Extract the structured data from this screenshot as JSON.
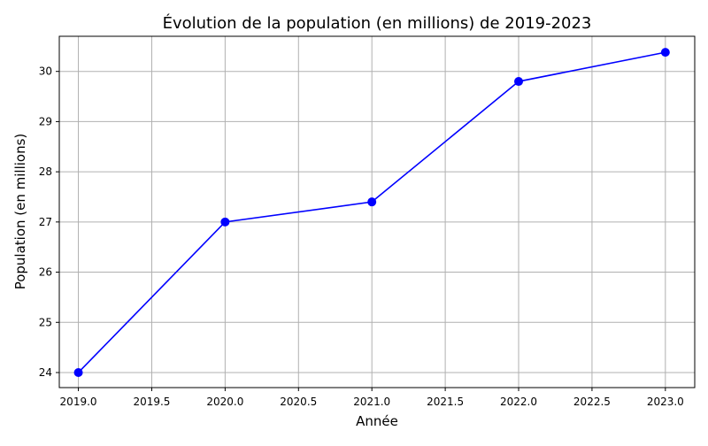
{
  "chart_data": {
    "type": "line",
    "title": "Évolution de la population (en millions) de 2019-2023",
    "xlabel": "Année",
    "ylabel": "Population (en millions)",
    "xlim": [
      2018.87,
      2023.2
    ],
    "ylim": [
      23.7,
      30.7
    ],
    "x_ticks": [
      2019.0,
      2019.5,
      2020.0,
      2020.5,
      2021.0,
      2021.5,
      2022.0,
      2022.5,
      2023.0
    ],
    "x_tick_labels": [
      "2019.0",
      "2019.5",
      "2020.0",
      "2020.5",
      "2021.0",
      "2021.5",
      "2022.0",
      "2022.5",
      "2023.0"
    ],
    "y_ticks": [
      24,
      25,
      26,
      27,
      28,
      29,
      30
    ],
    "y_tick_labels": [
      "24",
      "25",
      "26",
      "27",
      "28",
      "29",
      "30"
    ],
    "grid": true,
    "series": [
      {
        "color": "#0000ff",
        "marker": "circle",
        "x": [
          2019,
          2020,
          2021,
          2022,
          2023
        ],
        "y": [
          24.0,
          27.0,
          27.4,
          29.8,
          30.38
        ]
      }
    ]
  }
}
